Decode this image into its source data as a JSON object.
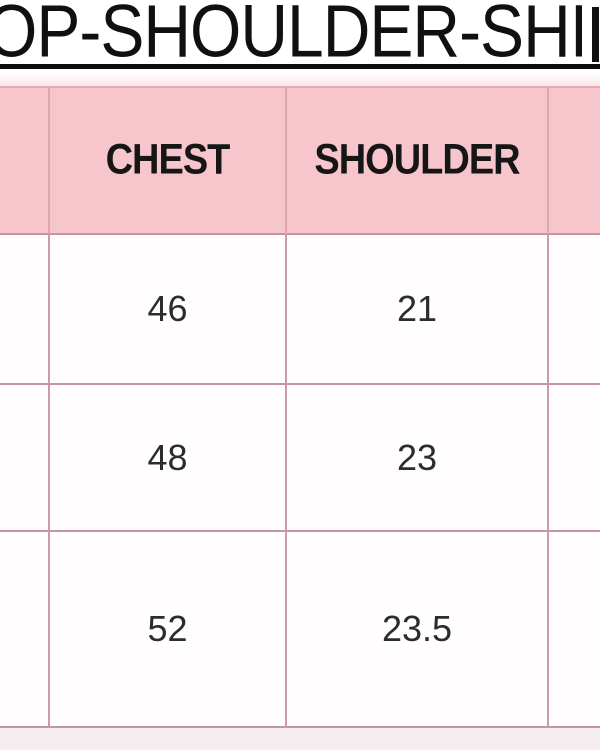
{
  "chart_data": {
    "type": "table",
    "title": "OP-SHOULDER-SHI",
    "columns": [
      "",
      "CHEST",
      "SHOULDER",
      ""
    ],
    "rows": [
      [
        "",
        "46",
        "21",
        ""
      ],
      [
        "",
        "48",
        "23",
        ""
      ],
      [
        "",
        "52",
        "23.5",
        ""
      ]
    ],
    "layout_notes": "size chart graphic cropped on all sides; leftmost and rightmost columns only partially visible; title cut off at both edges with thick black underline"
  },
  "colors": {
    "header_bg": "#f6c6cc",
    "grid_line": "#cb9ca8",
    "header_grid_line": "#dfa6b0",
    "cell_bg": "#fffdfe",
    "title_text": "#101010",
    "header_text": "#161616",
    "value_text": "#2c2c2c",
    "below_table_bg": "#f5edf1"
  }
}
